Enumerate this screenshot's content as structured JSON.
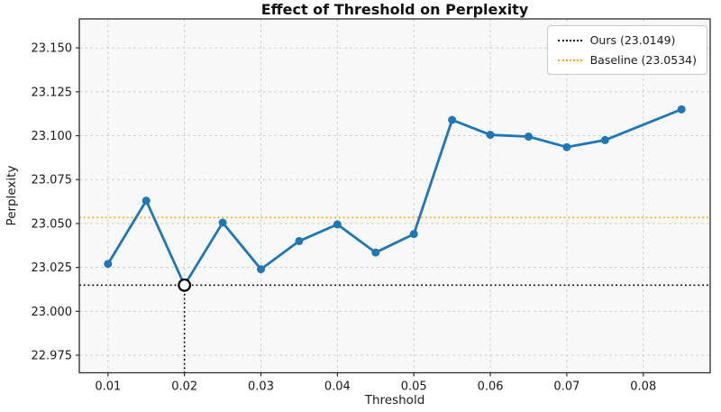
{
  "chart_data": {
    "type": "line",
    "title": "Effect of Threshold on Perplexity",
    "xlabel": "Threshold",
    "ylabel": "Perplexity",
    "x": [
      0.01,
      0.015,
      0.02,
      0.025,
      0.03,
      0.035,
      0.04,
      0.045,
      0.05,
      0.055,
      0.06,
      0.065,
      0.07,
      0.075,
      0.085
    ],
    "y": [
      23.027,
      23.063,
      23.0149,
      23.0505,
      23.024,
      23.04,
      23.0495,
      23.0335,
      23.044,
      23.109,
      23.1005,
      23.0995,
      23.0935,
      23.0975,
      23.115
    ],
    "line_color": "#1f77b4",
    "highlight_point": {
      "x": 0.02,
      "y": 23.0149,
      "style": "open-circle",
      "drop_line": "dotted-black"
    },
    "reference_lines": [
      {
        "name": "ours",
        "value": 23.0149,
        "color": "#000000",
        "style": "dotted",
        "label": "Ours (23.0149)"
      },
      {
        "name": "baseline",
        "value": 23.0534,
        "color": "#ffa500",
        "style": "dotted",
        "label": "Baseline (23.0534)"
      }
    ],
    "xticks": [
      0.01,
      0.02,
      0.03,
      0.04,
      0.05,
      0.06,
      0.07,
      0.08
    ],
    "xtick_labels": [
      "0.01",
      "0.02",
      "0.03",
      "0.04",
      "0.05",
      "0.06",
      "0.07",
      "0.08"
    ],
    "yticks": [
      22.975,
      23.0,
      23.025,
      23.05,
      23.075,
      23.1,
      23.125,
      23.15
    ],
    "ytick_labels": [
      "22.975",
      "23.000",
      "23.025",
      "23.050",
      "23.075",
      "23.100",
      "23.125",
      "23.150"
    ],
    "xlim": [
      0.00625,
      0.08875
    ],
    "ylim": [
      22.965,
      23.1665
    ],
    "grid": true,
    "grid_color": "#cccccc",
    "plot_bg": "#f8f8f8",
    "spine_color": "#2e2e2e",
    "legend_position": "upper right"
  }
}
